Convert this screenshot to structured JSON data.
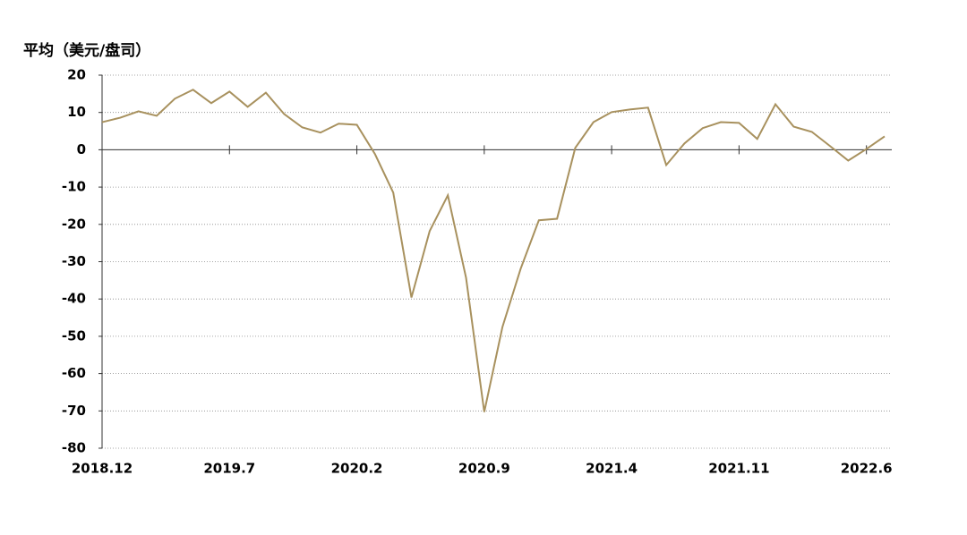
{
  "chart_data": {
    "type": "line",
    "y_label": "平均（美元/盘司）",
    "categories": [
      "2018.12",
      null,
      null,
      null,
      null,
      null,
      null,
      "2019.7",
      null,
      null,
      null,
      null,
      null,
      null,
      "2020.2",
      null,
      null,
      null,
      null,
      null,
      null,
      "2020.9",
      null,
      null,
      null,
      null,
      null,
      null,
      "2021.4",
      null,
      null,
      null,
      null,
      null,
      null,
      "2021.11",
      null,
      null,
      null,
      null,
      null,
      null,
      "2022.6",
      null
    ],
    "values": [
      7.4,
      8.6,
      10.3,
      9.1,
      13.7,
      16.1,
      12.5,
      15.6,
      11.5,
      15.3,
      9.6,
      6.0,
      4.6,
      7.0,
      6.7,
      -1.2,
      -11.5,
      -39.6,
      -21.8,
      -12.2,
      -34.3,
      -70.3,
      -47.5,
      -31.9,
      -18.9,
      -18.5,
      0.5,
      7.4,
      10.1,
      10.8,
      11.3,
      -4.1,
      1.7,
      5.8,
      7.4,
      7.2,
      2.9,
      12.2,
      6.2,
      4.8,
      1.0,
      -2.9,
      0.2,
      3.6
    ],
    "color": "#a8915e",
    "ylim": [
      -80,
      20
    ],
    "yticks": [
      -80,
      -70,
      -60,
      -50,
      -40,
      -30,
      -20,
      -10,
      0,
      10,
      20
    ],
    "grid": true
  }
}
